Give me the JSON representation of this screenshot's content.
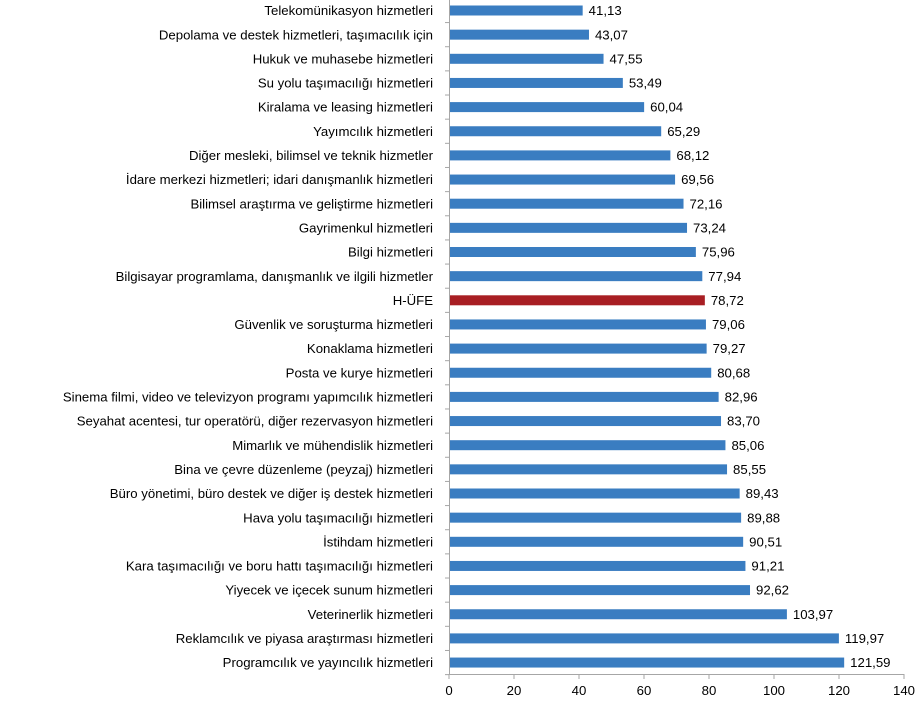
{
  "chart_data": {
    "type": "bar",
    "orientation": "horizontal",
    "categories": [
      "Telekomünikasyon hizmetleri",
      "Depolama ve destek hizmetleri, taşımacılık için",
      "Hukuk ve muhasebe hizmetleri",
      "Su yolu taşımacılığı hizmetleri",
      "Kiralama ve leasing hizmetleri",
      "Yayımcılık hizmetleri",
      "Diğer mesleki, bilimsel ve teknik hizmetler",
      "İdare merkezi hizmetleri; idari danışmanlık hizmetleri",
      "Bilimsel araştırma ve geliştirme hizmetleri",
      "Gayrimenkul hizmetleri",
      "Bilgi hizmetleri",
      "Bilgisayar programlama, danışmanlık ve ilgili hizmetler",
      "H-ÜFE",
      "Güvenlik ve soruşturma hizmetleri",
      "Konaklama hizmetleri",
      "Posta ve kurye hizmetleri",
      "Sinema filmi, video ve televizyon programı yapımcılık hizmetleri",
      "Seyahat acentesi, tur operatörü, diğer rezervasyon hizmetleri",
      "Mimarlık ve mühendislik hizmetleri",
      "Bina ve çevre düzenleme (peyzaj) hizmetleri",
      "Büro yönetimi, büro destek ve diğer iş destek hizmetleri",
      "Hava yolu taşımacılığı hizmetleri",
      "İstihdam hizmetleri",
      "Kara taşımacılığı ve boru hattı taşımacılığı hizmetleri",
      "Yiyecek ve içecek sunum hizmetleri",
      "Veterinerlik hizmetleri",
      "Reklamcılık ve piyasa araştırması hizmetleri",
      "Programcılık ve yayıncılık hizmetleri"
    ],
    "values": [
      41.13,
      43.07,
      47.55,
      53.49,
      60.04,
      65.29,
      68.12,
      69.56,
      72.16,
      73.24,
      75.96,
      77.94,
      78.72,
      79.06,
      79.27,
      80.68,
      82.96,
      83.7,
      85.06,
      85.55,
      89.43,
      89.88,
      90.51,
      91.21,
      92.62,
      103.97,
      119.97,
      121.59
    ],
    "value_labels": [
      "41,13",
      "43,07",
      "47,55",
      "53,49",
      "60,04",
      "65,29",
      "68,12",
      "69,56",
      "72,16",
      "73,24",
      "75,96",
      "77,94",
      "78,72",
      "79,06",
      "79,27",
      "80,68",
      "82,96",
      "83,70",
      "85,06",
      "85,55",
      "89,43",
      "89,88",
      "90,51",
      "91,21",
      "92,62",
      "103,97",
      "119,97",
      "121,59"
    ],
    "highlight_category": "H-ÜFE",
    "xlim": [
      0,
      140
    ],
    "x_ticks": [
      "0",
      "20",
      "40",
      "60",
      "80",
      "100",
      "120",
      "140"
    ],
    "x_tick_values": [
      0,
      20,
      40,
      60,
      80,
      100,
      120,
      140
    ],
    "grid": false,
    "legend": "none",
    "title": "",
    "xlabel": "",
    "ylabel": ""
  },
  "colors": {
    "bar": "#3A7DC1",
    "highlight_bar": "#A81E23",
    "axis": "#A6A6A6",
    "text": "#000000"
  }
}
